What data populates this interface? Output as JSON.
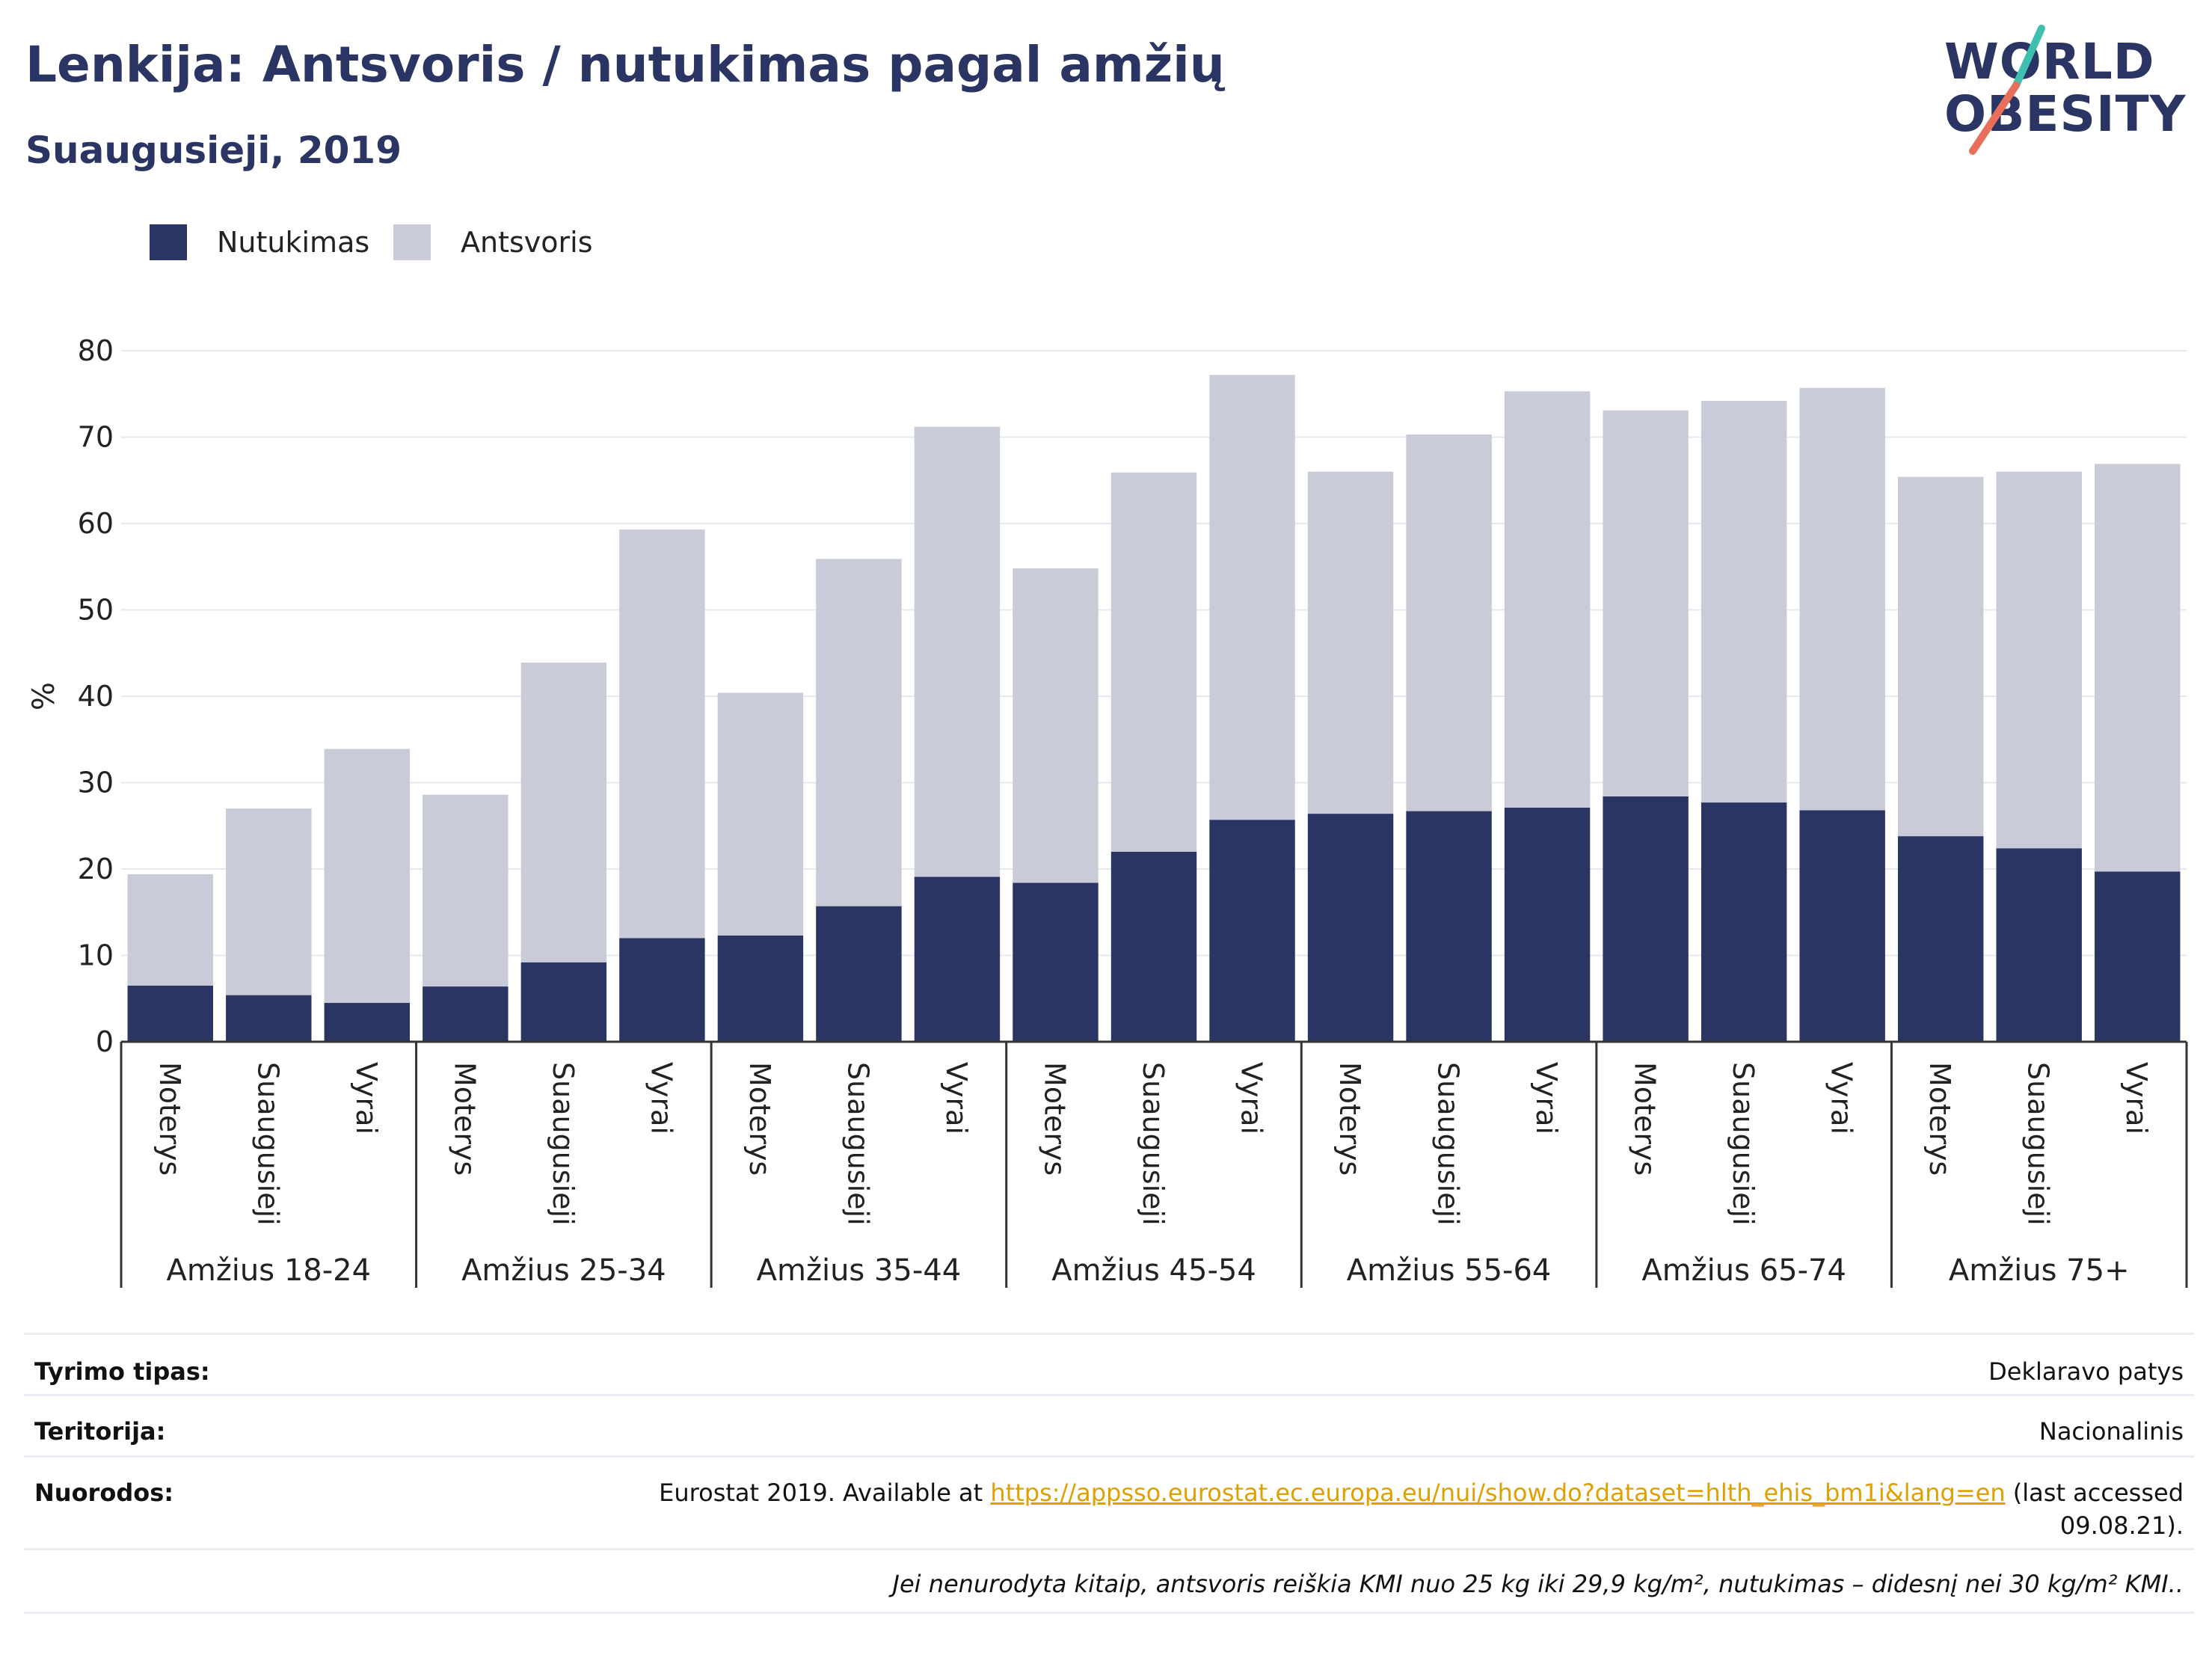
{
  "header": {
    "title": "Lenkija: Antsvoris / nutukimas pagal amžių",
    "subtitle": "Suaugusieji, 2019"
  },
  "logo": {
    "line1": "WORLD",
    "line2": "OBESITY",
    "colors": {
      "text": "#2a3563",
      "slash_top": "#3fbfb0",
      "slash_bottom": "#e8705a"
    }
  },
  "legend": {
    "items": [
      {
        "label": "Nutukimas",
        "color": "#2a3563"
      },
      {
        "label": "Antsvoris",
        "color": "#c9cbd8"
      }
    ]
  },
  "chart_data": {
    "type": "bar",
    "stacked": true,
    "ylabel": "%",
    "xlabel": "",
    "ylim": [
      0,
      80
    ],
    "yticks": [
      0,
      10,
      20,
      30,
      40,
      50,
      60,
      70,
      80
    ],
    "grid": true,
    "legend_position": "top-left",
    "groups": [
      "Amžius 18-24",
      "Amžius 25-34",
      "Amžius 35-44",
      "Amžius 45-54",
      "Amžius 55-64",
      "Amžius 65-74",
      "Amžius 75+"
    ],
    "subcategories": [
      "Moterys",
      "Suaugusieji",
      "Vyrai"
    ],
    "series": [
      {
        "name": "Nutukimas",
        "color": "#2a3563",
        "values": [
          6.5,
          5.4,
          4.5,
          6.4,
          9.2,
          12.0,
          12.3,
          15.7,
          19.1,
          18.4,
          22.0,
          25.7,
          26.4,
          26.7,
          27.1,
          28.4,
          27.7,
          26.8,
          23.8,
          22.4,
          19.7
        ]
      },
      {
        "name": "Antsvoris",
        "color": "#c9cbd8",
        "values": [
          12.9,
          21.6,
          29.4,
          22.2,
          34.7,
          47.3,
          28.1,
          40.2,
          52.1,
          36.4,
          43.9,
          51.5,
          39.6,
          43.6,
          48.2,
          44.7,
          46.5,
          48.9,
          41.6,
          43.6,
          47.2
        ]
      }
    ],
    "totals": [
      19.4,
      27.0,
      33.9,
      28.6,
      43.9,
      59.3,
      40.4,
      55.9,
      71.2,
      54.8,
      65.9,
      77.2,
      66.0,
      70.3,
      75.3,
      73.1,
      74.2,
      75.7,
      65.4,
      66.0,
      66.9
    ]
  },
  "footer": {
    "rows": [
      {
        "label": "Tyrimo tipas:",
        "value": "Deklaravo patys"
      },
      {
        "label": "Teritorija:",
        "value": "Nacionalinis"
      },
      {
        "label": "Nuorodos:",
        "value_pre": "Eurostat 2019. Available at ",
        "link": "https://appsso.eurostat.ec.europa.eu/nui/show.do?dataset=hlth_ehis_bm1i&lang=en",
        "value_post": " (last accessed",
        "value_line2": "09.08.21)."
      }
    ],
    "note": "Jei nenurodyta kitaip, antsvoris reiškia KMI nuo 25 kg iki 29,9 kg/m², nutukimas – didesnį nei 30 kg/m² KMI.."
  }
}
